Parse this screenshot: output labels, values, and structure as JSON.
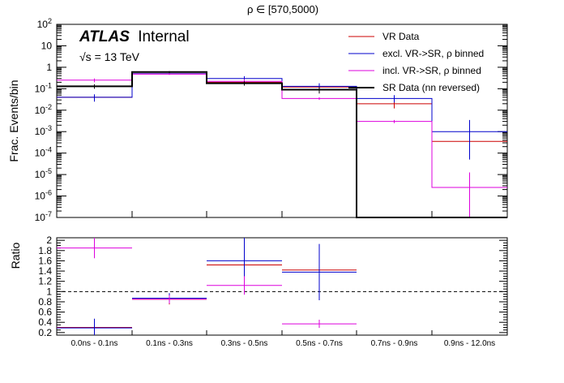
{
  "chart_data": {
    "title": "ρ ∈ [570,5000)",
    "experiment": "ATLAS",
    "status": "Internal",
    "energy": "√s = 13 TeV",
    "categories": [
      "0.0ns - 0.1ns",
      "0.1ns - 0.3ns",
      "0.3ns - 0.5ns",
      "0.5ns - 0.7ns",
      "0.7ns - 0.9ns",
      "0.9ns - 12.0ns"
    ],
    "top": {
      "type": "step",
      "yscale": "log",
      "ylabel": "Frac. Events/bin",
      "ylim": [
        1e-07,
        100
      ],
      "ytick_labels": [
        "10^-7",
        "10^-6",
        "10^-5",
        "10^-4",
        "10^-3",
        "10^-2",
        "10^-1",
        "1",
        "10",
        "10^2"
      ],
      "series": [
        {
          "name": "VR Data",
          "color": "#cc0000",
          "values": [
            0.04,
            0.5,
            0.2,
            0.12,
            0.02,
            0.00035
          ],
          "errors_up": [
            0.005,
            0.03,
            0.02,
            0.02,
            0.014,
            0
          ],
          "errors_down": [
            0.005,
            0.03,
            0.02,
            0.02,
            0.008,
            0
          ]
        },
        {
          "name": "excl. VR->SR, ρ binned",
          "color": "#0000cc",
          "values": [
            0.04,
            0.5,
            0.3,
            0.13,
            0.035,
            0.001
          ],
          "errors_up": [
            0.015,
            0.05,
            0.08,
            0.05,
            0.015,
            0.0025
          ],
          "errors_down": [
            0.015,
            0.05,
            0.08,
            0.05,
            0.012,
            0.00095
          ]
        },
        {
          "name": "incl. VR->SR, ρ binned",
          "color": "#dd00dd",
          "values": [
            0.25,
            0.48,
            0.22,
            0.035,
            0.003,
            2.5e-06
          ],
          "errors_up": [
            0.05,
            0.04,
            0.06,
            0.005,
            0.0005,
            1e-05
          ],
          "errors_down": [
            0.05,
            0.04,
            0.06,
            0.005,
            0.0005,
            2.4e-06
          ]
        },
        {
          "name": "SR Data (nn reversed)",
          "color": "#000000",
          "values": [
            0.13,
            0.6,
            0.18,
            0.09,
            0,
            0
          ],
          "errors_up": [
            0.03,
            0.06,
            0.04,
            0.03,
            0,
            0
          ],
          "errors_down": [
            0.03,
            0.06,
            0.04,
            0.03,
            0,
            0
          ]
        }
      ]
    },
    "bottom": {
      "type": "points",
      "ylabel": "Ratio",
      "ylim": [
        0.15,
        2.05
      ],
      "yticks": [
        0.2,
        0.4,
        0.6,
        0.8,
        1,
        1.2,
        1.4,
        1.6,
        1.8,
        2
      ],
      "ytick_labels": [
        "0.2",
        "0.4",
        "0.6",
        "0.8",
        "1",
        "1.2",
        "1.4",
        "1.6",
        "1.8",
        "2"
      ],
      "reference_line": 1,
      "series": [
        {
          "name": "VR Data",
          "color": "#cc0000",
          "values": [
            0.3,
            0.85,
            1.52,
            1.42,
            null,
            null
          ],
          "errors": [
            0.06,
            0.1,
            0.25,
            0.25,
            null,
            null
          ]
        },
        {
          "name": "excl. VR->SR, ρ binned",
          "color": "#0000cc",
          "values": [
            0.29,
            0.87,
            1.6,
            1.38,
            null,
            null
          ],
          "errors": [
            0.18,
            0.1,
            0.45,
            0.55,
            null,
            null
          ]
        },
        {
          "name": "incl. VR->SR, ρ binned",
          "color": "#dd00dd",
          "values": [
            1.85,
            0.85,
            1.12,
            0.37,
            null,
            null
          ],
          "errors": [
            0.2,
            0.08,
            0.18,
            0.08,
            null,
            null
          ]
        }
      ]
    },
    "legend_position": "top-right"
  }
}
